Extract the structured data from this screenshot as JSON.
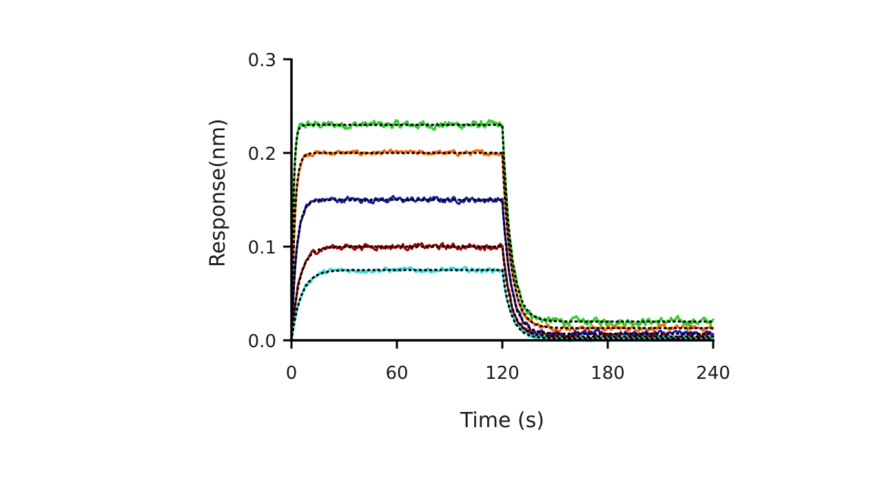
{
  "chart_data": {
    "type": "line",
    "title": "",
    "xlabel": "Time (s)",
    "ylabel": "Response(nm)",
    "xlim": [
      0,
      240
    ],
    "ylim": [
      0,
      0.3
    ],
    "xticks": [
      0,
      60,
      120,
      180,
      240
    ],
    "yticks": [
      0.0,
      0.1,
      0.2,
      0.3
    ],
    "xtick_labels": [
      "0",
      "60",
      "120",
      "180",
      "240"
    ],
    "ytick_labels": [
      "0.0",
      "0.1",
      "0.2",
      "0.3"
    ],
    "grid": false,
    "legend": "none",
    "association_end": 120,
    "series": [
      {
        "color": "#33cc33",
        "plateau": 0.23,
        "ka_rate": 0.9,
        "dissoc_residual": 0.02,
        "noise": 0.004
      },
      {
        "color": "#ff6600",
        "plateau": 0.2,
        "ka_rate": 0.55,
        "dissoc_residual": 0.013,
        "noise": 0.0025
      },
      {
        "color": "#1a1aaa",
        "plateau": 0.15,
        "ka_rate": 0.35,
        "dissoc_residual": 0.007,
        "noise": 0.003
      },
      {
        "color": "#a00000",
        "plateau": 0.1,
        "ka_rate": 0.22,
        "dissoc_residual": 0.004,
        "noise": 0.003
      },
      {
        "color": "#33dddd",
        "plateau": 0.075,
        "ka_rate": 0.18,
        "dissoc_residual": 0.002,
        "noise": 0.0025
      }
    ]
  }
}
